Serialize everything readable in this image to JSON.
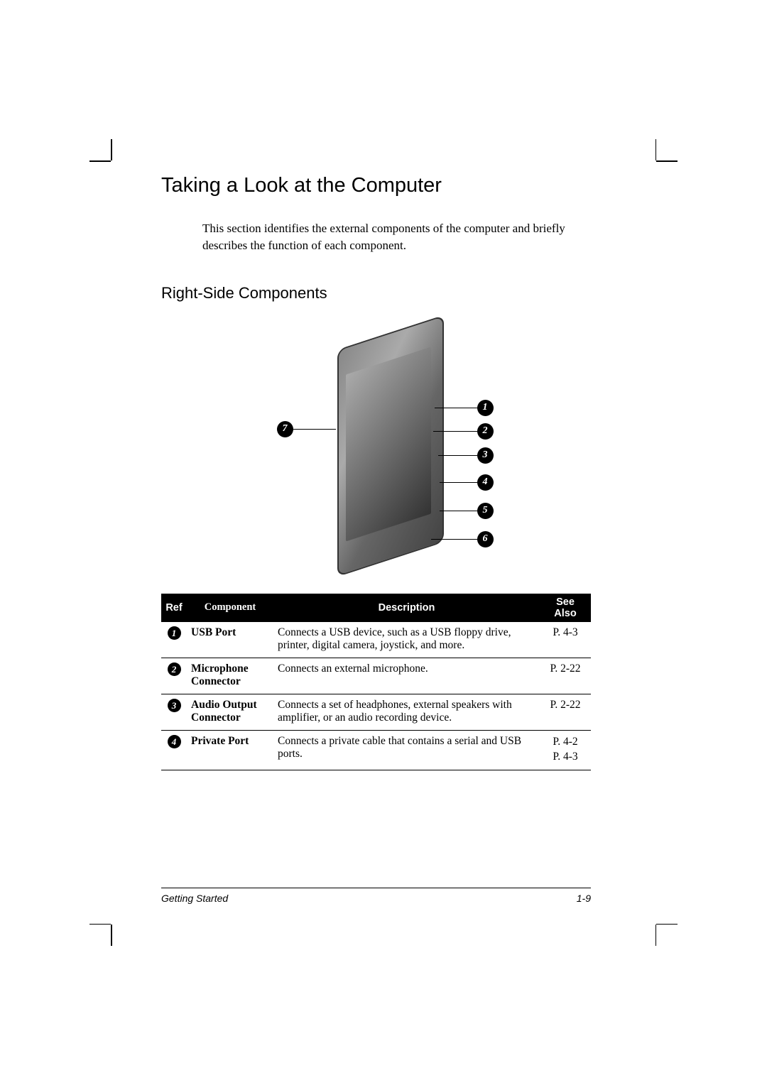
{
  "heading1": "Taking a Look at the Computer",
  "intro": "This section identifies the external components of the computer and briefly describes the function of each component.",
  "heading2": "Right-Side Components",
  "diagram": {
    "callouts": [
      "1",
      "2",
      "3",
      "4",
      "5",
      "6",
      "7"
    ]
  },
  "table": {
    "headers": {
      "ref": "Ref",
      "component": "Component",
      "description": "Description",
      "see_also": "See Also"
    },
    "rows": [
      {
        "ref": "1",
        "component": "USB Port",
        "description": "Connects a USB device, such as a USB floppy drive, printer, digital camera, joystick, and more.",
        "see_also": "P. 4-3"
      },
      {
        "ref": "2",
        "component": "Microphone Connector",
        "description": "Connects an external microphone.",
        "see_also": "P. 2-22"
      },
      {
        "ref": "3",
        "component": "Audio Output Connector",
        "description": "Connects a set of headphones, external speakers with amplifier, or an audio recording device.",
        "see_also": "P. 2-22"
      },
      {
        "ref": "4",
        "component": "Private Port",
        "description": "Connects a private cable that contains a serial and USB ports.",
        "see_also": "P. 4-2\nP. 4-3"
      }
    ]
  },
  "footer": {
    "left": "Getting Started",
    "right": "1-9"
  },
  "colors": {
    "text": "#000000",
    "background": "#ffffff",
    "header_bg": "#000000",
    "header_text": "#ffffff"
  }
}
